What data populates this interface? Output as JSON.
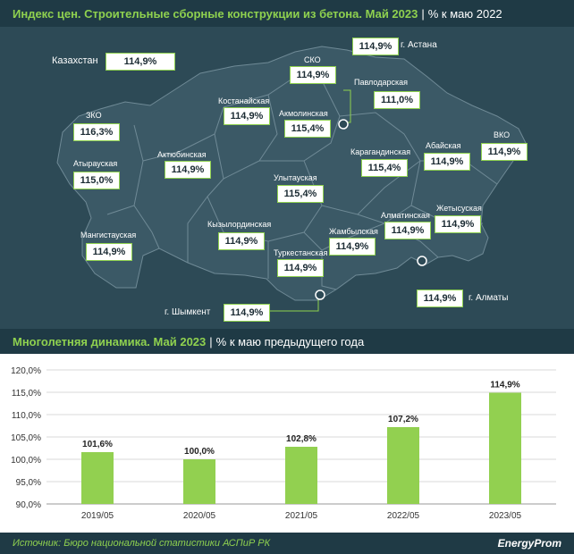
{
  "header_top": {
    "title": "Индекс цен. Строительные сборные конструкции из бетона. Май 2023",
    "separator": "|",
    "subtitle": "% к маю 2022"
  },
  "map": {
    "kazakhstan": {
      "name": "Казахстан",
      "value": "114,9%"
    },
    "regions": [
      {
        "name": "ЗКО",
        "value": "116,3%"
      },
      {
        "name": "Атырауская",
        "value": "115,0%"
      },
      {
        "name": "Мангистауская",
        "value": "114,9%"
      },
      {
        "name": "Актюбинская",
        "value": "114,9%"
      },
      {
        "name": "Костанайская",
        "value": "114,9%"
      },
      {
        "name": "СКО",
        "value": "114,9%"
      },
      {
        "name": "Акмолинская",
        "value": "115,4%"
      },
      {
        "name": "Павлодарская",
        "value": "111,0%"
      },
      {
        "name": "ВКО",
        "value": "114,9%"
      },
      {
        "name": "Абайская",
        "value": "114,9%"
      },
      {
        "name": "Карагандинская",
        "value": "115,4%"
      },
      {
        "name": "Улытауская",
        "value": "115,4%"
      },
      {
        "name": "Кызылординская",
        "value": "114,9%"
      },
      {
        "name": "Туркестанская",
        "value": "114,9%"
      },
      {
        "name": "Жамбылская",
        "value": "114,9%"
      },
      {
        "name": "Алматинская",
        "value": "114,9%"
      },
      {
        "name": "Жетысуская",
        "value": "114,9%"
      }
    ],
    "cities": [
      {
        "name": "г. Астана",
        "value": "114,9%"
      },
      {
        "name": "г. Алматы",
        "value": "114,9%"
      },
      {
        "name": "г. Шымкент",
        "value": "114,9%"
      }
    ],
    "colors": {
      "land": "#3b5966",
      "border": "#6f8a96",
      "box_border": "#8fd14f"
    }
  },
  "header_bottom": {
    "title": "Многолетняя динамика. Май 2023",
    "separator": "|",
    "subtitle": "% к маю предыдущего года"
  },
  "chart_data": {
    "type": "bar",
    "categories": [
      "2019/05",
      "2020/05",
      "2021/05",
      "2022/05",
      "2023/05"
    ],
    "values": [
      101.6,
      100.0,
      102.8,
      107.2,
      114.9
    ],
    "value_labels": [
      "101,6%",
      "100,0%",
      "102,8%",
      "107,2%",
      "114,9%"
    ],
    "ylim": [
      90,
      120
    ],
    "yticks": [
      "90,0%",
      "95,0%",
      "100,0%",
      "105,0%",
      "110,0%",
      "115,0%",
      "120,0%"
    ],
    "ytick_values": [
      90,
      95,
      100,
      105,
      110,
      115,
      120
    ],
    "grid": true,
    "bar_color": "#92d050"
  },
  "footer": {
    "source": "Источник: Бюро национальной статистики АСПиР РК",
    "logo": "EnergyProm"
  }
}
